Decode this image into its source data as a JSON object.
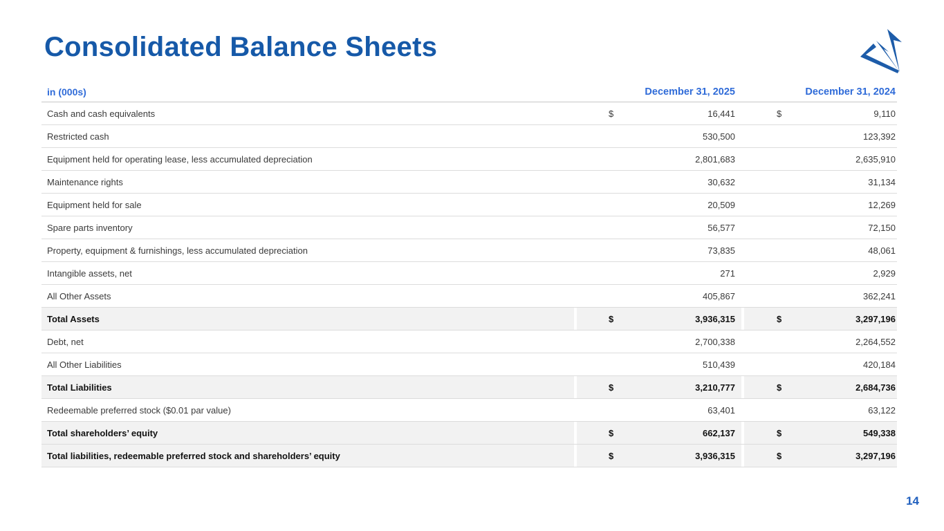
{
  "slide": {
    "title": "Consolidated Balance Sheets",
    "page_number": "14"
  },
  "colors": {
    "title_blue": "#1659A8",
    "header_blue": "#2F6BD8",
    "logo_blue": "#1D5CA9",
    "page_number_blue": "#2160BE",
    "row_text": "#3A3A3A",
    "total_row_bg": "#F2F2F2",
    "divider": "#DCDCDC"
  },
  "table": {
    "unit_label": "in (000s)",
    "columns": [
      "December 31, 2025",
      "December 31, 2024"
    ],
    "rows": [
      {
        "label": "Cash and cash equivalents",
        "cur": "$",
        "v2025": "16,441",
        "v2024": "9,110",
        "total": false
      },
      {
        "label": "Restricted cash",
        "cur": "",
        "v2025": "530,500",
        "v2024": "123,392",
        "total": false
      },
      {
        "label": "Equipment held for operating lease, less accumulated depreciation",
        "cur": "",
        "v2025": "2,801,683",
        "v2024": "2,635,910",
        "total": false
      },
      {
        "label": "Maintenance rights",
        "cur": "",
        "v2025": "30,632",
        "v2024": "31,134",
        "total": false
      },
      {
        "label": "Equipment held for sale",
        "cur": "",
        "v2025": "20,509",
        "v2024": "12,269",
        "total": false
      },
      {
        "label": "Spare parts inventory",
        "cur": "",
        "v2025": "56,577",
        "v2024": "72,150",
        "total": false
      },
      {
        "label": "Property, equipment & furnishings, less accumulated depreciation",
        "cur": "",
        "v2025": "73,835",
        "v2024": "48,061",
        "total": false
      },
      {
        "label": "Intangible assets, net",
        "cur": "",
        "v2025": "271",
        "v2024": "2,929",
        "total": false
      },
      {
        "label": "All Other Assets",
        "cur": "",
        "v2025": "405,867",
        "v2024": "362,241",
        "total": false
      },
      {
        "label": "Total Assets",
        "cur": "$",
        "v2025": "3,936,315",
        "v2024": "3,297,196",
        "total": true
      },
      {
        "label": "Debt, net",
        "cur": "",
        "v2025": "2,700,338",
        "v2024": "2,264,552",
        "total": false
      },
      {
        "label": "All Other Liabilities",
        "cur": "",
        "v2025": "510,439",
        "v2024": "420,184",
        "total": false
      },
      {
        "label": "Total Liabilities",
        "cur": "$",
        "v2025": "3,210,777",
        "v2024": "2,684,736",
        "total": true
      },
      {
        "label": "Redeemable preferred stock ($0.01 par value)",
        "cur": "",
        "v2025": "63,401",
        "v2024": "63,122",
        "total": false
      },
      {
        "label": "Total shareholders’ equity",
        "cur": "$",
        "v2025": "662,137",
        "v2024": "549,338",
        "total": true
      },
      {
        "label": "Total liabilities, redeemable preferred stock and shareholders’ equity",
        "cur": "$",
        "v2025": "3,936,315",
        "v2024": "3,297,196",
        "total": true
      }
    ]
  }
}
